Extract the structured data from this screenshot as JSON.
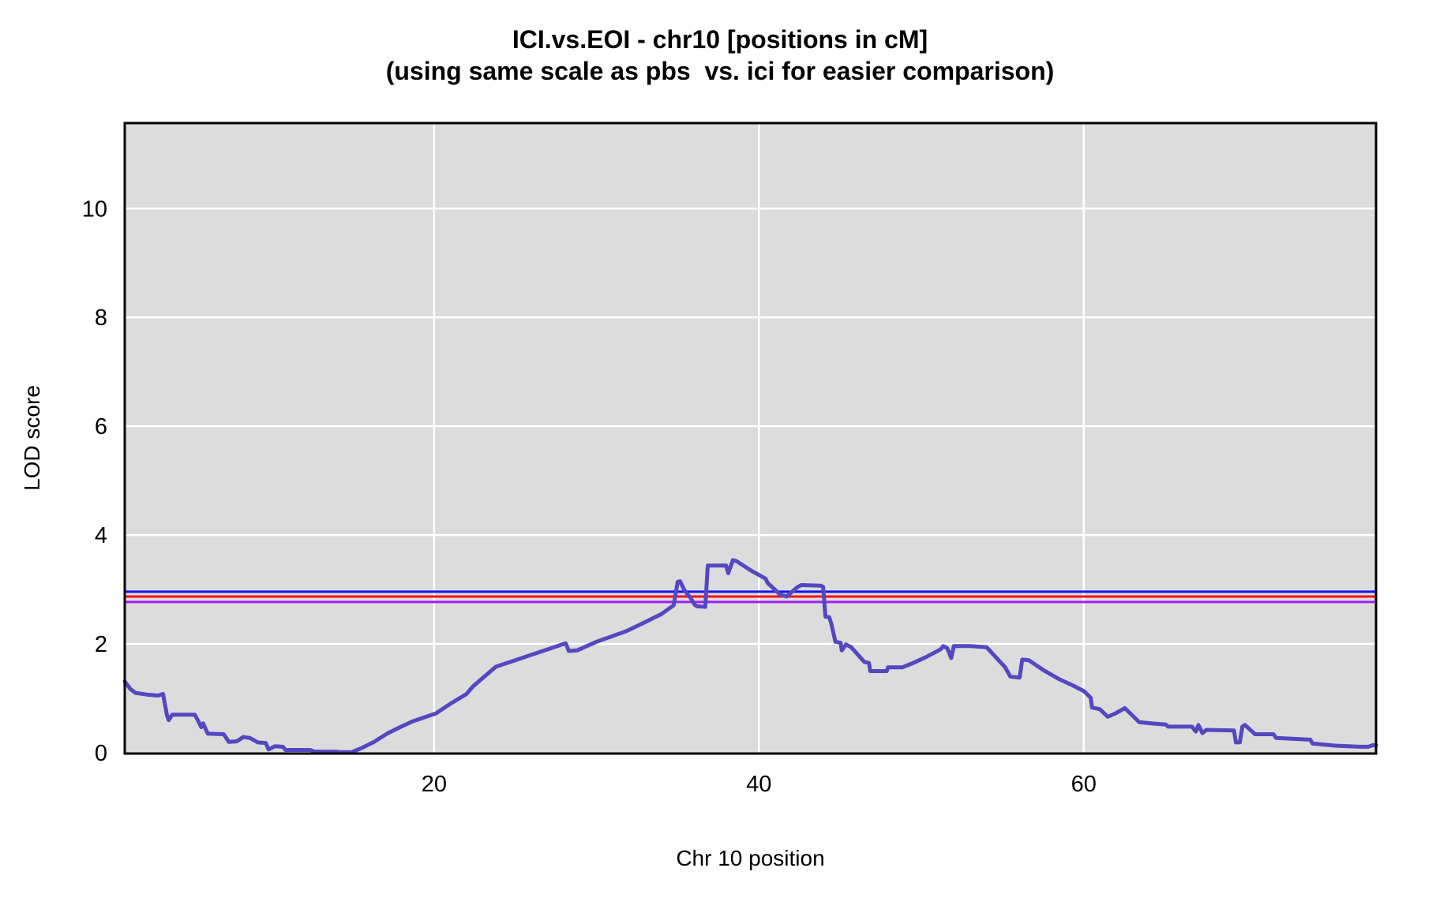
{
  "title": {
    "line1": "ICI.vs.EOI - chr10 [positions in cM]",
    "line2": "(using same scale as pbs  vs. ici for easier comparison)"
  },
  "axes": {
    "x_label": "Chr 10 position",
    "y_label": "LOD score",
    "x_ticks": [
      20,
      40,
      60
    ],
    "y_ticks": [
      0,
      2,
      4,
      6,
      8,
      10
    ],
    "xlim": [
      0.95,
      78
    ],
    "ylim": [
      -0.015,
      11.57
    ],
    "grid": true
  },
  "colors": {
    "panel_background": "#dcdcdc",
    "grid": "#ffffff",
    "border": "#000000",
    "curve": "#5447c0",
    "threshold_blue": "#1414ee",
    "threshold_red": "#f01212",
    "threshold_purple": "#a020f0",
    "text": "#000000"
  },
  "chart_data": {
    "type": "line",
    "title": "ICI.vs.EOI - chr10 [positions in cM]",
    "subtitle": "(using same scale as pbs  vs. ici for easier comparison)",
    "xlabel": "Chr 10 position",
    "ylabel": "LOD score",
    "xlim": [
      0.95,
      78
    ],
    "ylim": [
      -0.015,
      11.57
    ],
    "x_ticks": [
      20,
      40,
      60
    ],
    "y_ticks": [
      0,
      2,
      4,
      6,
      8,
      10
    ],
    "grid": "white on gray panel",
    "legend_position": "none",
    "thresholds": [
      {
        "name": "threshold-blue",
        "value": 2.96,
        "color": "#1414ee"
      },
      {
        "name": "threshold-red",
        "value": 2.87,
        "color": "#f01212"
      },
      {
        "name": "threshold-purple",
        "value": 2.77,
        "color": "#a020f0"
      }
    ],
    "series": [
      {
        "name": "LOD",
        "color": "#5447c0",
        "points": [
          [
            0.95,
            1.31
          ],
          [
            1.3,
            1.17
          ],
          [
            1.61,
            1.1
          ],
          [
            2.3,
            1.07
          ],
          [
            3.0,
            1.05
          ],
          [
            3.31,
            1.08
          ],
          [
            3.55,
            0.69
          ],
          [
            3.66,
            0.6
          ],
          [
            3.87,
            0.7
          ],
          [
            5.26,
            0.7
          ],
          [
            5.5,
            0.57
          ],
          [
            5.66,
            0.47
          ],
          [
            5.78,
            0.54
          ],
          [
            5.91,
            0.45
          ],
          [
            6.07,
            0.35
          ],
          [
            7.04,
            0.34
          ],
          [
            7.36,
            0.2
          ],
          [
            7.85,
            0.21
          ],
          [
            8.25,
            0.29
          ],
          [
            8.66,
            0.27
          ],
          [
            9.15,
            0.19
          ],
          [
            9.63,
            0.18
          ],
          [
            9.8,
            0.06
          ],
          [
            10.2,
            0.12
          ],
          [
            10.69,
            0.11
          ],
          [
            10.85,
            0.05
          ],
          [
            12.39,
            0.05
          ],
          [
            12.63,
            0.02
          ],
          [
            14.01,
            0.02
          ],
          [
            14.2,
            0.01
          ],
          [
            14.9,
            0.01
          ],
          [
            15.5,
            0.08
          ],
          [
            16.3,
            0.2
          ],
          [
            17.1,
            0.35
          ],
          [
            17.9,
            0.47
          ],
          [
            18.7,
            0.58
          ],
          [
            20.1,
            0.72
          ],
          [
            21.0,
            0.9
          ],
          [
            22.0,
            1.08
          ],
          [
            22.4,
            1.22
          ],
          [
            23.8,
            1.58
          ],
          [
            24.0,
            1.6
          ],
          [
            25.0,
            1.7
          ],
          [
            26.0,
            1.8
          ],
          [
            27.0,
            1.9
          ],
          [
            28.1,
            2.01
          ],
          [
            28.3,
            1.87
          ],
          [
            28.8,
            1.88
          ],
          [
            30.0,
            2.04
          ],
          [
            31.8,
            2.23
          ],
          [
            33.0,
            2.4
          ],
          [
            34.0,
            2.55
          ],
          [
            34.75,
            2.71
          ],
          [
            35.0,
            3.14
          ],
          [
            35.15,
            3.15
          ],
          [
            35.4,
            2.99
          ],
          [
            35.8,
            2.84
          ],
          [
            36.05,
            2.72
          ],
          [
            36.2,
            2.69
          ],
          [
            36.7,
            2.68
          ],
          [
            36.85,
            3.44
          ],
          [
            37.98,
            3.44
          ],
          [
            38.11,
            3.3
          ],
          [
            38.4,
            3.54
          ],
          [
            38.63,
            3.52
          ],
          [
            39.5,
            3.35
          ],
          [
            40.41,
            3.2
          ],
          [
            40.54,
            3.12
          ],
          [
            41.3,
            2.91
          ],
          [
            41.7,
            2.87
          ],
          [
            42.36,
            3.04
          ],
          [
            42.6,
            3.08
          ],
          [
            43.8,
            3.07
          ],
          [
            43.95,
            3.05
          ],
          [
            44.1,
            2.5
          ],
          [
            44.33,
            2.49
          ],
          [
            44.45,
            2.38
          ],
          [
            44.71,
            2.04
          ],
          [
            45.03,
            2.02
          ],
          [
            45.1,
            1.88
          ],
          [
            45.36,
            1.99
          ],
          [
            45.68,
            1.94
          ],
          [
            46.49,
            1.67
          ],
          [
            46.77,
            1.65
          ],
          [
            46.86,
            1.5
          ],
          [
            47.87,
            1.5
          ],
          [
            47.95,
            1.57
          ],
          [
            48.84,
            1.57
          ],
          [
            49.5,
            1.65
          ],
          [
            50.3,
            1.76
          ],
          [
            51.19,
            1.9
          ],
          [
            51.35,
            1.96
          ],
          [
            51.6,
            1.92
          ],
          [
            51.84,
            1.74
          ],
          [
            52.0,
            1.96
          ],
          [
            53.0,
            1.96
          ],
          [
            54.02,
            1.94
          ],
          [
            55.16,
            1.57
          ],
          [
            55.48,
            1.4
          ],
          [
            56.05,
            1.38
          ],
          [
            56.21,
            1.71
          ],
          [
            56.62,
            1.7
          ],
          [
            57.5,
            1.52
          ],
          [
            58.5,
            1.35
          ],
          [
            59.3,
            1.24
          ],
          [
            60.02,
            1.13
          ],
          [
            60.43,
            1.01
          ],
          [
            60.51,
            0.83
          ],
          [
            60.99,
            0.8
          ],
          [
            61.48,
            0.66
          ],
          [
            62.0,
            0.73
          ],
          [
            62.53,
            0.82
          ],
          [
            63.42,
            0.56
          ],
          [
            64.5,
            0.53
          ],
          [
            65.04,
            0.52
          ],
          [
            65.2,
            0.48
          ],
          [
            66.66,
            0.48
          ],
          [
            66.9,
            0.39
          ],
          [
            67.06,
            0.51
          ],
          [
            67.31,
            0.36
          ],
          [
            67.55,
            0.42
          ],
          [
            69.25,
            0.41
          ],
          [
            69.37,
            0.19
          ],
          [
            69.61,
            0.19
          ],
          [
            69.77,
            0.48
          ],
          [
            69.93,
            0.51
          ],
          [
            70.55,
            0.34
          ],
          [
            71.68,
            0.34
          ],
          [
            71.85,
            0.27
          ],
          [
            73.95,
            0.24
          ],
          [
            74.08,
            0.17
          ],
          [
            75.5,
            0.13
          ],
          [
            77.0,
            0.11
          ],
          [
            77.51,
            0.11
          ],
          [
            77.84,
            0.14
          ],
          [
            78.0,
            0.14
          ]
        ]
      }
    ]
  }
}
